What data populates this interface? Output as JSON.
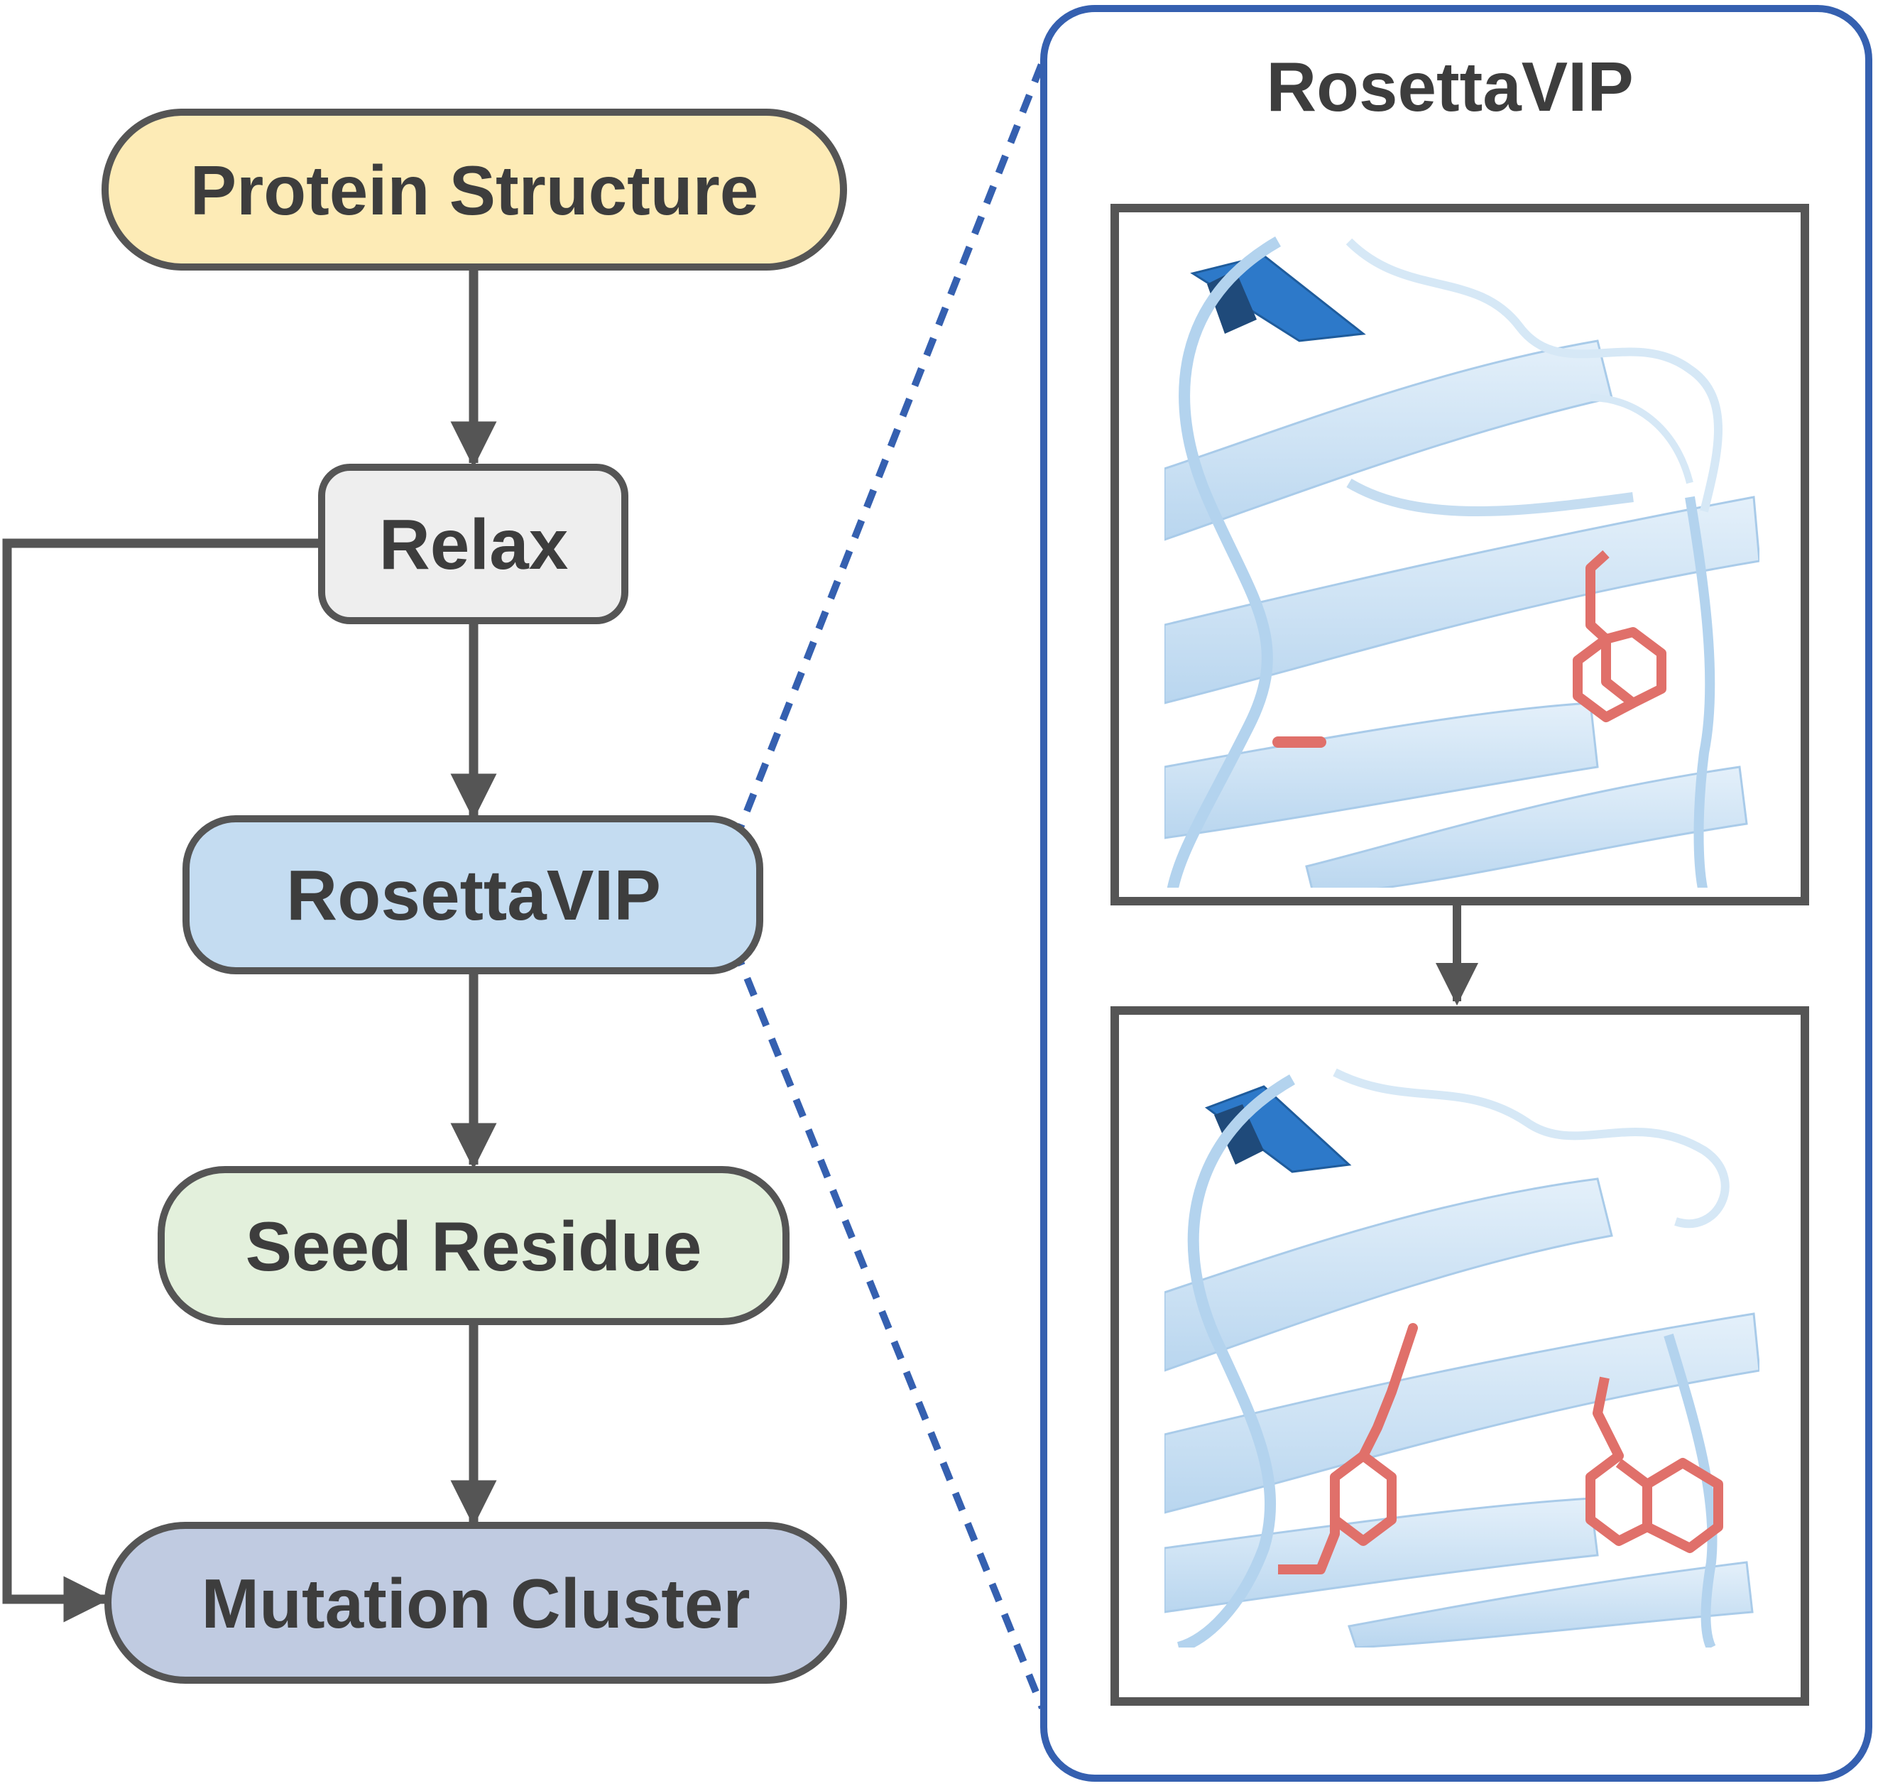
{
  "flowchart": {
    "nodes": [
      {
        "id": "protein-structure",
        "label": "Protein Structure",
        "fill": "#fdebb6"
      },
      {
        "id": "relax",
        "label": "Relax",
        "fill": "#eeeeee"
      },
      {
        "id": "rosettavip",
        "label": "RosettaVIP",
        "fill": "#c4dcf1"
      },
      {
        "id": "seed-residue",
        "label": "Seed Residue",
        "fill": "#e3f0dc"
      },
      {
        "id": "mutation-cluster",
        "label": "Mutation Cluster",
        "fill": "#c0cbe1"
      }
    ],
    "edges": [
      {
        "from": "protein-structure",
        "to": "relax"
      },
      {
        "from": "relax",
        "to": "rosettavip"
      },
      {
        "from": "rosettavip",
        "to": "seed-residue"
      },
      {
        "from": "seed-residue",
        "to": "mutation-cluster"
      },
      {
        "from": "relax",
        "to": "mutation-cluster"
      }
    ]
  },
  "detail_panel": {
    "title": "RosettaVIP",
    "border_color": "#3560b0",
    "images": [
      {
        "name": "before-structure",
        "residue_color": "#e0706a"
      },
      {
        "name": "after-structure",
        "residue_color": "#e0706a"
      }
    ]
  },
  "colors": {
    "stroke": "#555555",
    "ribbon": "#c9e0f3",
    "ribbon_dark": "#2d79c9"
  }
}
